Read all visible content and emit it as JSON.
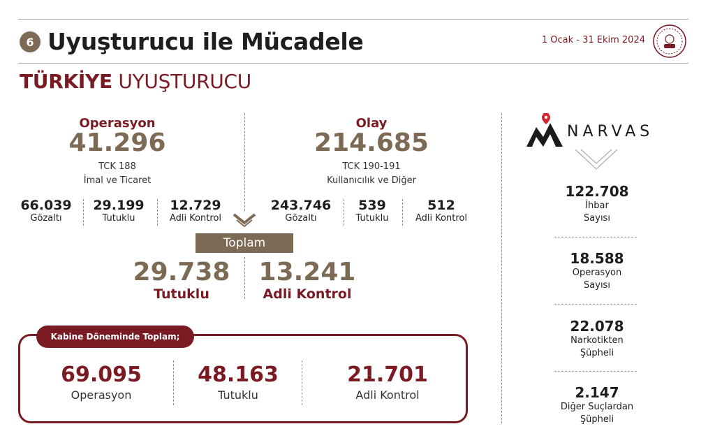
{
  "header": {
    "section_number": "6",
    "title": "Uyuşturucu ile Mücadele",
    "date_range": "1 Ocak - 31 Ekim 2024",
    "subtitle_bold": "TÜRKİYE",
    "subtitle_rest": " UYUŞTURUCU"
  },
  "operasyon": {
    "label": "Operasyon",
    "value": "41.296",
    "law": "TCK 188",
    "desc": "İmal ve Ticaret",
    "stats": [
      {
        "value": "66.039",
        "label": "Gözaltı"
      },
      {
        "value": "29.199",
        "label": "Tutuklu"
      },
      {
        "value": "12.729",
        "label": "Adli Kontrol"
      }
    ]
  },
  "olay": {
    "label": "Olay",
    "value": "214.685",
    "law": "TCK 190-191",
    "desc": "Kullanıcılık ve Diğer",
    "stats": [
      {
        "value": "243.746",
        "label": "Gözaltı"
      },
      {
        "value": "539",
        "label": "Tutuklu"
      },
      {
        "value": "512",
        "label": "Adli Kontrol"
      }
    ]
  },
  "toplam": {
    "label": "Toplam",
    "tutuklu_value": "29.738",
    "tutuklu_label": "Tutuklu",
    "adli_value": "13.241",
    "adli_label": "Adli Kontrol"
  },
  "kabine": {
    "header": "Kabine Döneminde Toplam;",
    "items": [
      {
        "value": "69.095",
        "label": "Operasyon"
      },
      {
        "value": "48.163",
        "label": "Tutuklu"
      },
      {
        "value": "21.701",
        "label": "Adli Kontrol"
      }
    ]
  },
  "narvas": {
    "brand": "NARVAS",
    "items": [
      {
        "value": "122.708",
        "line1": "İhbar",
        "line2": "Sayısı"
      },
      {
        "value": "18.588",
        "line1": "Operasyon",
        "line2": "Sayısı"
      },
      {
        "value": "22.078",
        "line1": "Narkotikten",
        "line2": "Şüpheli"
      },
      {
        "value": "2.147",
        "line1": "Diğer Suçlardan",
        "line2": "Şüpheli"
      }
    ]
  },
  "colors": {
    "accent_red": "#7a1a22",
    "accent_brown": "#7d6a55"
  },
  "icons": {
    "seal": "ministry-seal-icon",
    "narvas_logo": "narvas-logo-icon",
    "chevron": "chevron-down-icon"
  }
}
